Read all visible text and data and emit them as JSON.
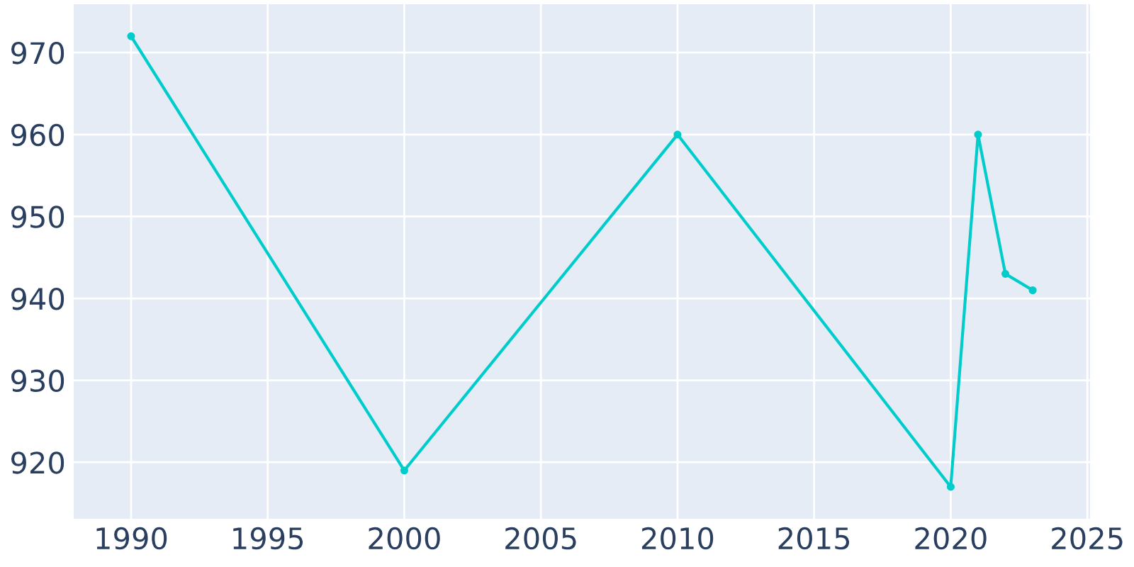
{
  "chart_data": {
    "type": "line",
    "x": [
      1990,
      2000,
      2010,
      2020,
      2021,
      2022,
      2023
    ],
    "series": [
      {
        "color": "#00cccc",
        "values": [
          972,
          919,
          960,
          917,
          960,
          943,
          941
        ]
      }
    ],
    "xlim": [
      1987.9,
      2025.1
    ],
    "ylim": [
      913.1,
      975.9
    ],
    "xticks": [
      1990,
      1995,
      2000,
      2005,
      2010,
      2015,
      2020,
      2025
    ],
    "yticks": [
      920,
      930,
      940,
      950,
      960,
      970
    ],
    "grid": true,
    "marker": "circle",
    "line_style": "solid",
    "legend": false
  }
}
